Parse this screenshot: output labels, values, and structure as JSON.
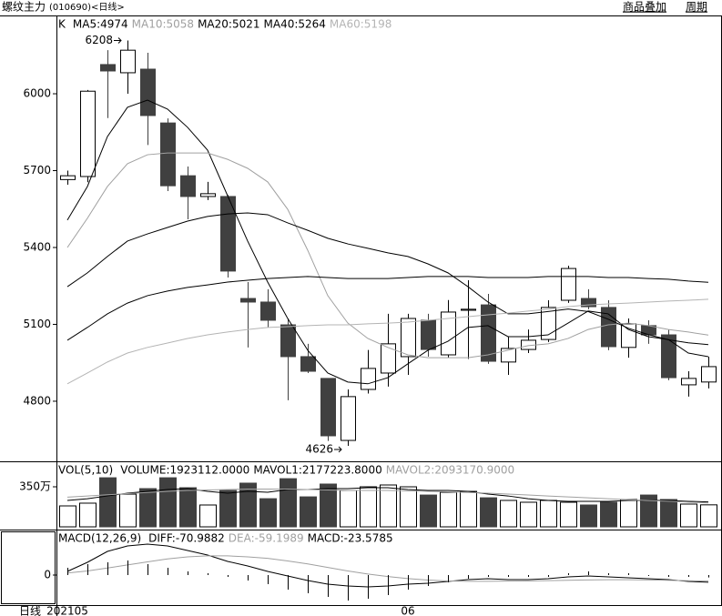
{
  "header": {
    "name": "螺纹主力",
    "code": "(010690)<日线>",
    "buttons": [
      "商品叠加",
      "周期"
    ],
    "period_label": "日线"
  },
  "chart_data": [
    {
      "type": "candlestick",
      "title": "K",
      "open": [
        5665,
        5677,
        6114,
        6082,
        6096,
        5886,
        5680,
        5599,
        5599,
        5201,
        5187,
        5098,
        4974,
        4889,
        4647,
        4846,
        4910,
        4974,
        5116,
        4981,
        5155,
        5176,
        4953,
        5002,
        5041,
        5194,
        5201,
        5166,
        5010,
        5095,
        5059,
        4864,
        4875
      ],
      "high": [
        5700,
        6015,
        6170,
        6208,
        6160,
        5904,
        5716,
        5656,
        5605,
        5265,
        5237,
        5123,
        5024,
        4890,
        4846,
        5000,
        5141,
        5141,
        5141,
        5195,
        5272,
        5219,
        5052,
        5080,
        5194,
        5329,
        5237,
        5194,
        5123,
        5116,
        5080,
        4917,
        4974
      ],
      "low": [
        5645,
        5655,
        5905,
        6000,
        5800,
        5620,
        5510,
        5585,
        5283,
        5010,
        5088,
        4804,
        4910,
        4645,
        4626,
        4830,
        4857,
        4903,
        4974,
        4970,
        4965,
        4946,
        4903,
        4988,
        5031,
        5184,
        5159,
        4999,
        4970,
        5024,
        4882,
        4818,
        4850
      ],
      "close": [
        5680,
        6010,
        6089,
        6170,
        5915,
        5641,
        5599,
        5610,
        5308,
        5187,
        5116,
        4974,
        4917,
        4665,
        4818,
        4928,
        5024,
        5123,
        5002,
        5148,
        5159,
        4956,
        5006,
        5038,
        5166,
        5318,
        5169,
        5013,
        5102,
        5059,
        4892,
        4889,
        4935
      ],
      "up_color": "#ffffff",
      "down_color": "#404040",
      "series": [
        {
          "name": "MA5:4974",
          "color": "#000000",
          "values": [
            5507,
            5638,
            5833,
            5947,
            5975,
            5940,
            5869,
            5780,
            5602,
            5425,
            5265,
            5123,
            4999,
            4910,
            4875,
            4868,
            4892,
            4946,
            4999,
            5034,
            5088,
            5095,
            5052,
            5052,
            5059,
            5105,
            5152,
            5141,
            5080,
            5052,
            5041,
            4988,
            4974
          ]
        },
        {
          "name": "MA10:5058",
          "color": "#a0a0a0",
          "values": [
            5400,
            5514,
            5638,
            5727,
            5762,
            5769,
            5769,
            5769,
            5744,
            5709,
            5656,
            5549,
            5389,
            5212,
            5105,
            5045,
            5010,
            4981,
            4970,
            4970,
            4970,
            4981,
            4999,
            5017,
            5024,
            5045,
            5080,
            5098,
            5105,
            5095,
            5080,
            5070,
            5058
          ]
        },
        {
          "name": "MA20:5021",
          "color": "#000000",
          "values": [
            5247,
            5301,
            5365,
            5425,
            5453,
            5478,
            5503,
            5521,
            5531,
            5535,
            5528,
            5496,
            5467,
            5436,
            5414,
            5397,
            5379,
            5365,
            5336,
            5301,
            5247,
            5187,
            5141,
            5141,
            5150,
            5160,
            5150,
            5120,
            5085,
            5060,
            5040,
            5028,
            5021
          ]
        },
        {
          "name": "MA40:5264",
          "color": "#000000",
          "values": [
            5038,
            5088,
            5141,
            5183,
            5212,
            5230,
            5244,
            5254,
            5265,
            5272,
            5279,
            5283,
            5287,
            5283,
            5279,
            5279,
            5279,
            5283,
            5287,
            5287,
            5287,
            5283,
            5283,
            5283,
            5287,
            5287,
            5287,
            5283,
            5283,
            5279,
            5276,
            5269,
            5264
          ]
        },
        {
          "name": "MA60:5198",
          "color": "#b4b4b4",
          "values": [
            4868,
            4910,
            4953,
            4988,
            5010,
            5027,
            5045,
            5059,
            5070,
            5080,
            5088,
            5091,
            5095,
            5098,
            5098,
            5102,
            5105,
            5109,
            5116,
            5123,
            5130,
            5137,
            5144,
            5152,
            5159,
            5169,
            5176,
            5180,
            5183,
            5187,
            5191,
            5194,
            5198
          ]
        }
      ],
      "annotations": [
        {
          "text": "6208"
        },
        {
          "text": "4626"
        }
      ],
      "ylim": [
        4569,
        6302
      ],
      "yticks": [
        4800,
        5100,
        5400,
        5700,
        6000
      ]
    },
    {
      "type": "bar",
      "title": "VOL(5,10)",
      "series": [
        {
          "name": "VOLUME:1923112.0000",
          "style": "bar",
          "values": [
            183,
            207,
            429,
            286,
            334,
            429,
            342,
            191,
            318,
            382,
            246,
            421,
            262,
            374,
            318,
            350,
            366,
            350,
            278,
            302,
            310,
            254,
            231,
            215,
            231,
            215,
            191,
            215,
            239,
            278,
            239,
            199,
            192.3112
          ]
        },
        {
          "name": "MAVOL1:2177223.8000",
          "color": "#000000",
          "values": [
            231,
            246,
            270,
            294,
            310,
            326,
            334,
            310,
            294,
            310,
            302,
            326,
            326,
            334,
            334,
            342,
            342,
            326,
            318,
            318,
            310,
            286,
            270,
            246,
            231,
            223,
            223,
            223,
            231,
            231,
            231,
            223,
            217.72238
          ]
        },
        {
          "name": "MAVOL2:2093170.9000",
          "color": "#a0a0a0",
          "values": [
            260,
            270,
            280,
            290,
            300,
            310,
            318,
            322,
            326,
            330,
            330,
            330,
            326,
            322,
            318,
            318,
            318,
            314,
            310,
            306,
            300,
            294,
            286,
            278,
            270,
            262,
            254,
            246,
            238,
            230,
            224,
            216,
            209.31709
          ]
        }
      ],
      "ylim": [
        0,
        549
      ],
      "yticks": [
        {
          "value": 350,
          "label": "350万"
        }
      ]
    },
    {
      "type": "line",
      "title": "MACD(12,26,9)",
      "categories": [
        "202105",
        null,
        null,
        null,
        null,
        null,
        null,
        null,
        null,
        null,
        null,
        null,
        null,
        null,
        null,
        null,
        null,
        "06",
        null,
        null,
        null,
        null,
        null,
        null,
        null,
        null,
        null,
        null,
        null,
        null,
        null,
        null,
        null
      ],
      "series": [
        {
          "name": "DIFF:-70.9882",
          "color": "#000000",
          "values": [
            36,
            126,
            234,
            288,
            306,
            288,
            243,
            198,
            135,
            90,
            36,
            -9,
            -54,
            -90,
            -108,
            -117,
            -108,
            -90,
            -81,
            -63,
            -45,
            -36,
            -45,
            -45,
            -36,
            -18,
            -9,
            -18,
            -27,
            -36,
            -45,
            -63,
            -70.9882
          ]
        },
        {
          "name": "DEA:-59.1989",
          "color": "#a0a0a0",
          "values": [
            20,
            40,
            70,
            100,
            130,
            160,
            180,
            190,
            190,
            180,
            165,
            140,
            110,
            75,
            40,
            10,
            -15,
            -35,
            -50,
            -58,
            -62,
            -62,
            -60,
            -58,
            -55,
            -52,
            -48,
            -46,
            -46,
            -48,
            -52,
            -56,
            -59.1989
          ]
        },
        {
          "name": "MACD:-23.5785",
          "color": "#000000",
          "style": "bar",
          "values": [
            72,
            108,
            126,
            144,
            108,
            72,
            36,
            18,
            -18,
            -54,
            -90,
            -144,
            -180,
            -216,
            -252,
            -234,
            -198,
            -144,
            -108,
            -72,
            -36,
            -18,
            -18,
            -18,
            -18,
            18,
            36,
            18,
            18,
            -9,
            -18,
            -18,
            -23.5785
          ]
        }
      ],
      "ylim": [
        -297,
        423
      ],
      "yticks": [
        0
      ]
    }
  ]
}
